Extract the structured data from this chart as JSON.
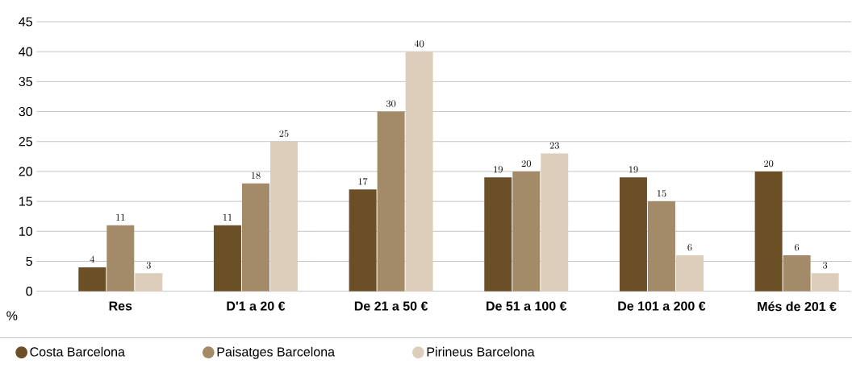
{
  "chart_data": {
    "type": "bar",
    "ylabel": "%",
    "categories": [
      "Res",
      "D'1 a 20 €",
      "De 21 a 50 €",
      "De 51 a 100 €",
      "De 101 a 200 €",
      "Més de 201 €"
    ],
    "series": [
      {
        "name": "Costa Barcelona",
        "color": "#6b4f27",
        "values": [
          4,
          11,
          17,
          19,
          19,
          20
        ]
      },
      {
        "name": "Paisatges Barcelona",
        "color": "#a38a69",
        "values": [
          11,
          18,
          30,
          20,
          15,
          6
        ]
      },
      {
        "name": "Pirineus Barcelona",
        "color": "#dccebb",
        "values": [
          3,
          25,
          40,
          23,
          6,
          3
        ]
      }
    ],
    "ylim": [
      0,
      45
    ],
    "yticks": [
      0,
      5,
      10,
      15,
      20,
      25,
      30,
      35,
      40,
      45
    ],
    "grid": "y",
    "legend": "bottom",
    "data_labels": true
  }
}
